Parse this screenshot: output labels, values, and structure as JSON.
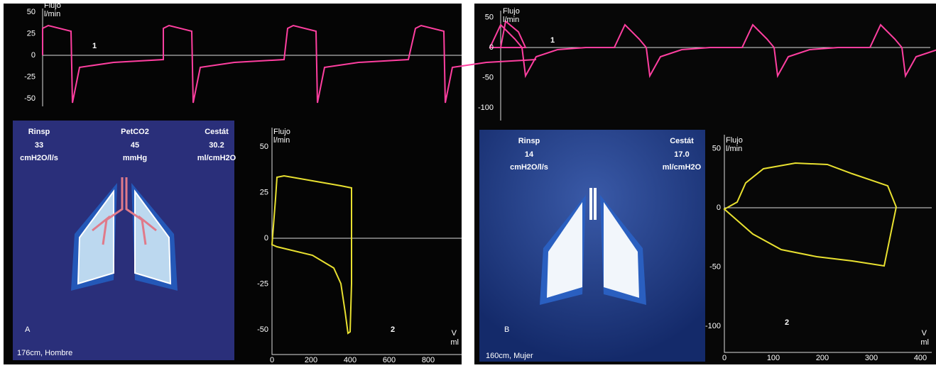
{
  "panels": [
    {
      "label": "A",
      "flow": {
        "title": "Flujo",
        "unit": "l/min",
        "yticks": [
          50,
          25,
          0,
          -25,
          -50
        ],
        "marker": "1"
      },
      "params": [
        {
          "name": "Rinsp",
          "value": "33",
          "unit": "cmH2O/l/s"
        },
        {
          "name": "PetCO2",
          "value": "45",
          "unit": "mmHg"
        },
        {
          "name": "Cestát",
          "value": "30.2",
          "unit": "ml/cmH2O"
        }
      ],
      "patient": "176cm, Hombre",
      "loop": {
        "title": "Flujo",
        "unit": "l/min",
        "yticks": [
          50,
          25,
          0,
          -25,
          -50
        ],
        "xticks": [
          0,
          200,
          400,
          600,
          800
        ],
        "x_title": "V",
        "x_unit": "ml",
        "marker": "2"
      }
    },
    {
      "label": "B",
      "flow": {
        "title": "Flujo",
        "unit": "l/min",
        "yticks": [
          50,
          0,
          -50,
          -100
        ],
        "marker": "1"
      },
      "params": [
        {
          "name": "Rinsp",
          "value": "14",
          "unit": "cmH2O/l/s"
        },
        {
          "name": "Cestát",
          "value": "17.0",
          "unit": "ml/cmH2O"
        }
      ],
      "patient": "160cm, Mujer",
      "loop": {
        "title": "Flujo",
        "unit": "l/min",
        "yticks": [
          50,
          0,
          -50,
          -100
        ],
        "xticks": [
          0,
          100,
          200,
          300,
          400
        ],
        "x_title": "V",
        "x_unit": "ml",
        "marker": "2"
      }
    }
  ]
}
